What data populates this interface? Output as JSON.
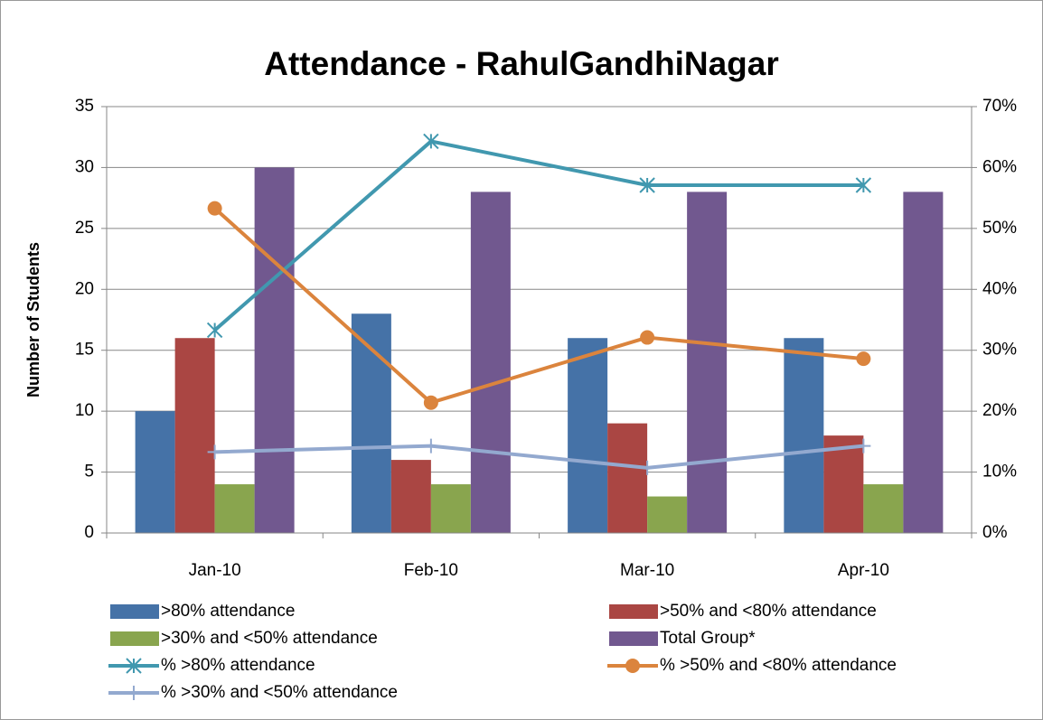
{
  "chart_data": {
    "type": "bar",
    "title": "Attendance - RahulGandhiNagar",
    "y_label": "Number of Students",
    "categories": [
      "Jan-10",
      "Feb-10",
      "Mar-10",
      "Apr-10"
    ],
    "series": [
      {
        "name": ">80% attendance",
        "color": "#4572a7",
        "values": [
          10,
          18,
          16,
          16
        ]
      },
      {
        "name": ">50% and <80% attendance",
        "color": "#aa4643",
        "values": [
          16,
          6,
          9,
          8
        ]
      },
      {
        "name": ">30% and <50% attendance",
        "color": "#89a54e",
        "values": [
          4,
          4,
          3,
          4
        ]
      },
      {
        "name": "Total Group*",
        "color": "#71588f",
        "values": [
          30,
          28,
          28,
          28
        ]
      },
      {
        "name": "% >80% attendance",
        "color": "#4198af",
        "type": "line",
        "marker": "star",
        "axis": "y2",
        "values": [
          33.3,
          64.3,
          57.1,
          57.1
        ]
      },
      {
        "name": "% >50% and <80% attendance",
        "color": "#db843d",
        "type": "line",
        "marker": "circle",
        "axis": "y2",
        "values": [
          53.3,
          21.4,
          32.1,
          28.6
        ]
      },
      {
        "name": "% >30% and <50% attendance",
        "color": "#93a9cf",
        "type": "line",
        "marker": "plus",
        "axis": "y2",
        "values": [
          13.3,
          14.3,
          10.7,
          14.3
        ]
      }
    ],
    "ylim": [
      0,
      35
    ],
    "yticks": [
      0,
      5,
      10,
      15,
      20,
      25,
      30,
      35
    ],
    "y2lim": [
      0,
      70
    ],
    "y2ticks": [
      {
        "value": 0,
        "label": "0%"
      },
      {
        "value": 10,
        "label": "10%"
      },
      {
        "value": 20,
        "label": "20%"
      },
      {
        "value": 30,
        "label": "30%"
      },
      {
        "value": 40,
        "label": "40%"
      },
      {
        "value": 50,
        "label": "50%"
      },
      {
        "value": 60,
        "label": "60%"
      },
      {
        "value": 70,
        "label": "70%"
      }
    ],
    "grid": true,
    "legend": "bottom"
  }
}
